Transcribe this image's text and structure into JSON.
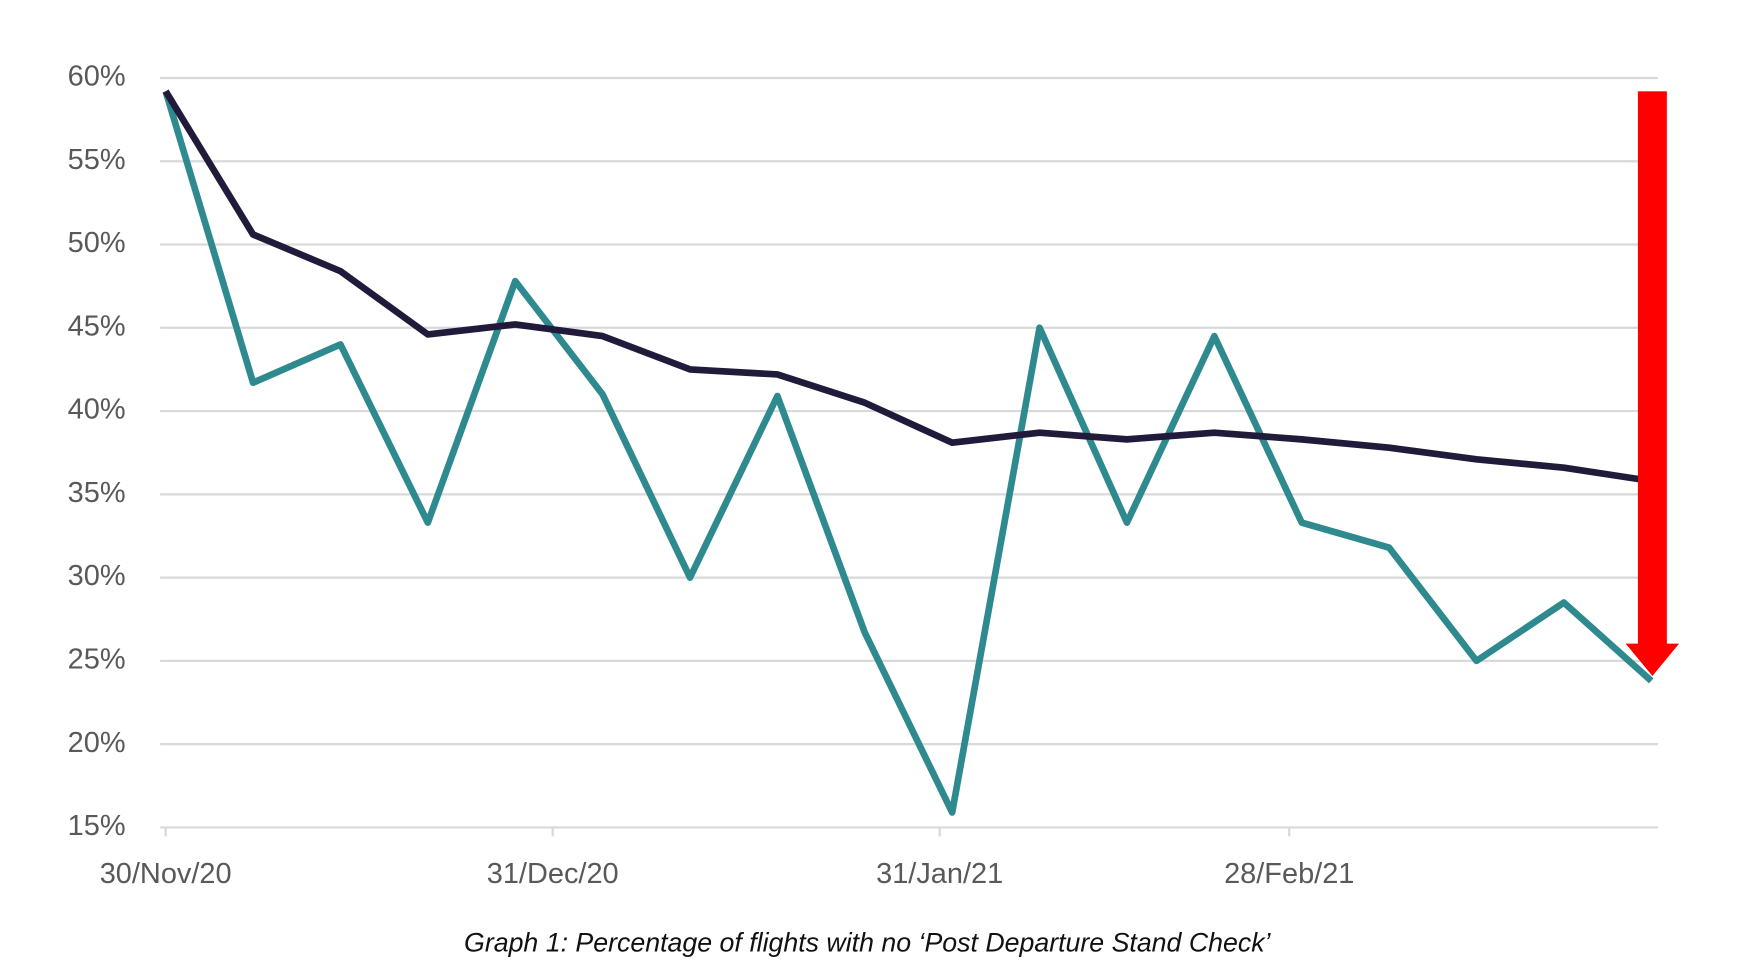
{
  "chart_data": {
    "type": "line",
    "caption": "Graph 1: Percentage of flights with no ‘Post Departure Stand Check’",
    "x": [
      "2020-11-30",
      "2020-12-07",
      "2020-12-14",
      "2020-12-21",
      "2020-12-28",
      "2021-01-04",
      "2021-01-11",
      "2021-01-18",
      "2021-01-25",
      "2021-02-01",
      "2021-02-08",
      "2021-02-15",
      "2021-02-22",
      "2021-03-01",
      "2021-03-08",
      "2021-03-15",
      "2021-03-22",
      "2021-03-29"
    ],
    "series": [
      {
        "color": "#2e8a8f",
        "values": [
          59.2,
          41.7,
          44.0,
          33.3,
          47.8,
          41.0,
          30.0,
          40.9,
          26.7,
          15.9,
          45.0,
          33.3,
          44.5,
          33.3,
          31.8,
          25.0,
          28.5,
          23.8
        ]
      },
      {
        "color": "#221a3a",
        "values": [
          59.2,
          50.6,
          48.4,
          44.6,
          45.2,
          44.5,
          42.5,
          42.2,
          40.5,
          38.1,
          38.7,
          38.3,
          38.7,
          38.3,
          37.8,
          37.1,
          36.6,
          35.8
        ]
      }
    ],
    "xlim": [
      "2020-11-30",
      "2021-03-29"
    ],
    "xticks": [
      {
        "value": "2020-11-30",
        "label": "30/Nov/20"
      },
      {
        "value": "2020-12-31",
        "label": "31/Dec/20"
      },
      {
        "value": "2021-01-31",
        "label": "31/Jan/21"
      },
      {
        "value": "2021-02-28",
        "label": "28/Feb/21"
      }
    ],
    "ylim": [
      15,
      60
    ],
    "yticks": [
      {
        "value": 15,
        "label": "15%"
      },
      {
        "value": 20,
        "label": "20%"
      },
      {
        "value": 25,
        "label": "25%"
      },
      {
        "value": 30,
        "label": "30%"
      },
      {
        "value": 35,
        "label": "35%"
      },
      {
        "value": 40,
        "label": "40%"
      },
      {
        "value": 45,
        "label": "45%"
      },
      {
        "value": 50,
        "label": "50%"
      },
      {
        "value": 55,
        "label": "55%"
      },
      {
        "value": 60,
        "label": "60%"
      }
    ],
    "grid": true
  }
}
